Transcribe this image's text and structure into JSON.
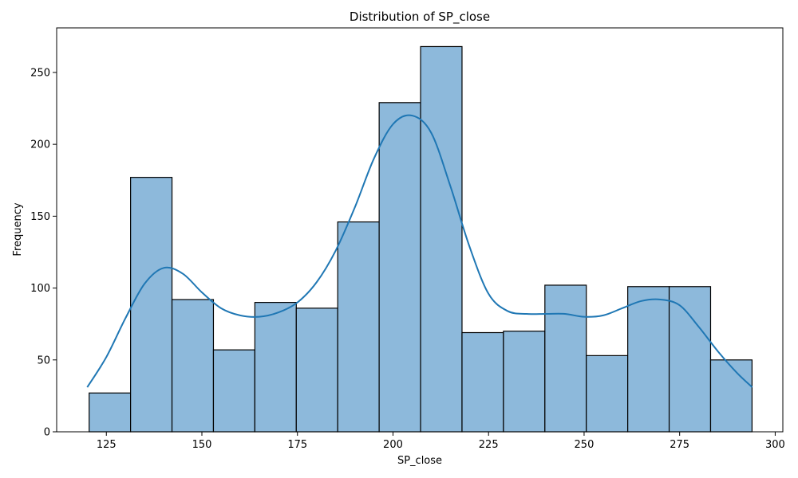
{
  "chart_data": {
    "type": "bar",
    "subtype": "histogram",
    "title": "Distribution of SP_close",
    "xlabel": "SP_close",
    "ylabel": "Frequency",
    "bin_start": 120.5,
    "bin_width": 10.84,
    "values": [
      27,
      177,
      92,
      57,
      90,
      86,
      146,
      229,
      268,
      69,
      70,
      102,
      53,
      101,
      101,
      50
    ],
    "xlim": [
      112,
      302
    ],
    "ylim": [
      0,
      281
    ],
    "xticks": [
      125,
      150,
      175,
      200,
      225,
      250,
      275,
      300
    ],
    "yticks": [
      0,
      50,
      100,
      150,
      200,
      250
    ],
    "kde": {
      "x": [
        120,
        125,
        130,
        135,
        140,
        145,
        150,
        155,
        160,
        165,
        170,
        175,
        180,
        185,
        190,
        195,
        200,
        205,
        210,
        215,
        220,
        225,
        230,
        235,
        240,
        245,
        250,
        255,
        260,
        265,
        270,
        275,
        280,
        285,
        290,
        294
      ],
      "y": [
        31,
        52,
        79,
        103,
        114,
        110,
        97,
        86,
        81,
        80,
        83,
        90,
        104,
        126,
        156,
        190,
        214,
        220,
        208,
        171,
        129,
        96,
        84,
        82,
        82,
        82,
        80,
        81,
        86,
        91,
        92,
        88,
        73,
        56,
        41,
        31
      ]
    },
    "colors": {
      "bar_fill": "#8db9db",
      "bar_edge": "#000000",
      "kde_line": "#1f77b4"
    },
    "grid": false,
    "legend": "none"
  }
}
